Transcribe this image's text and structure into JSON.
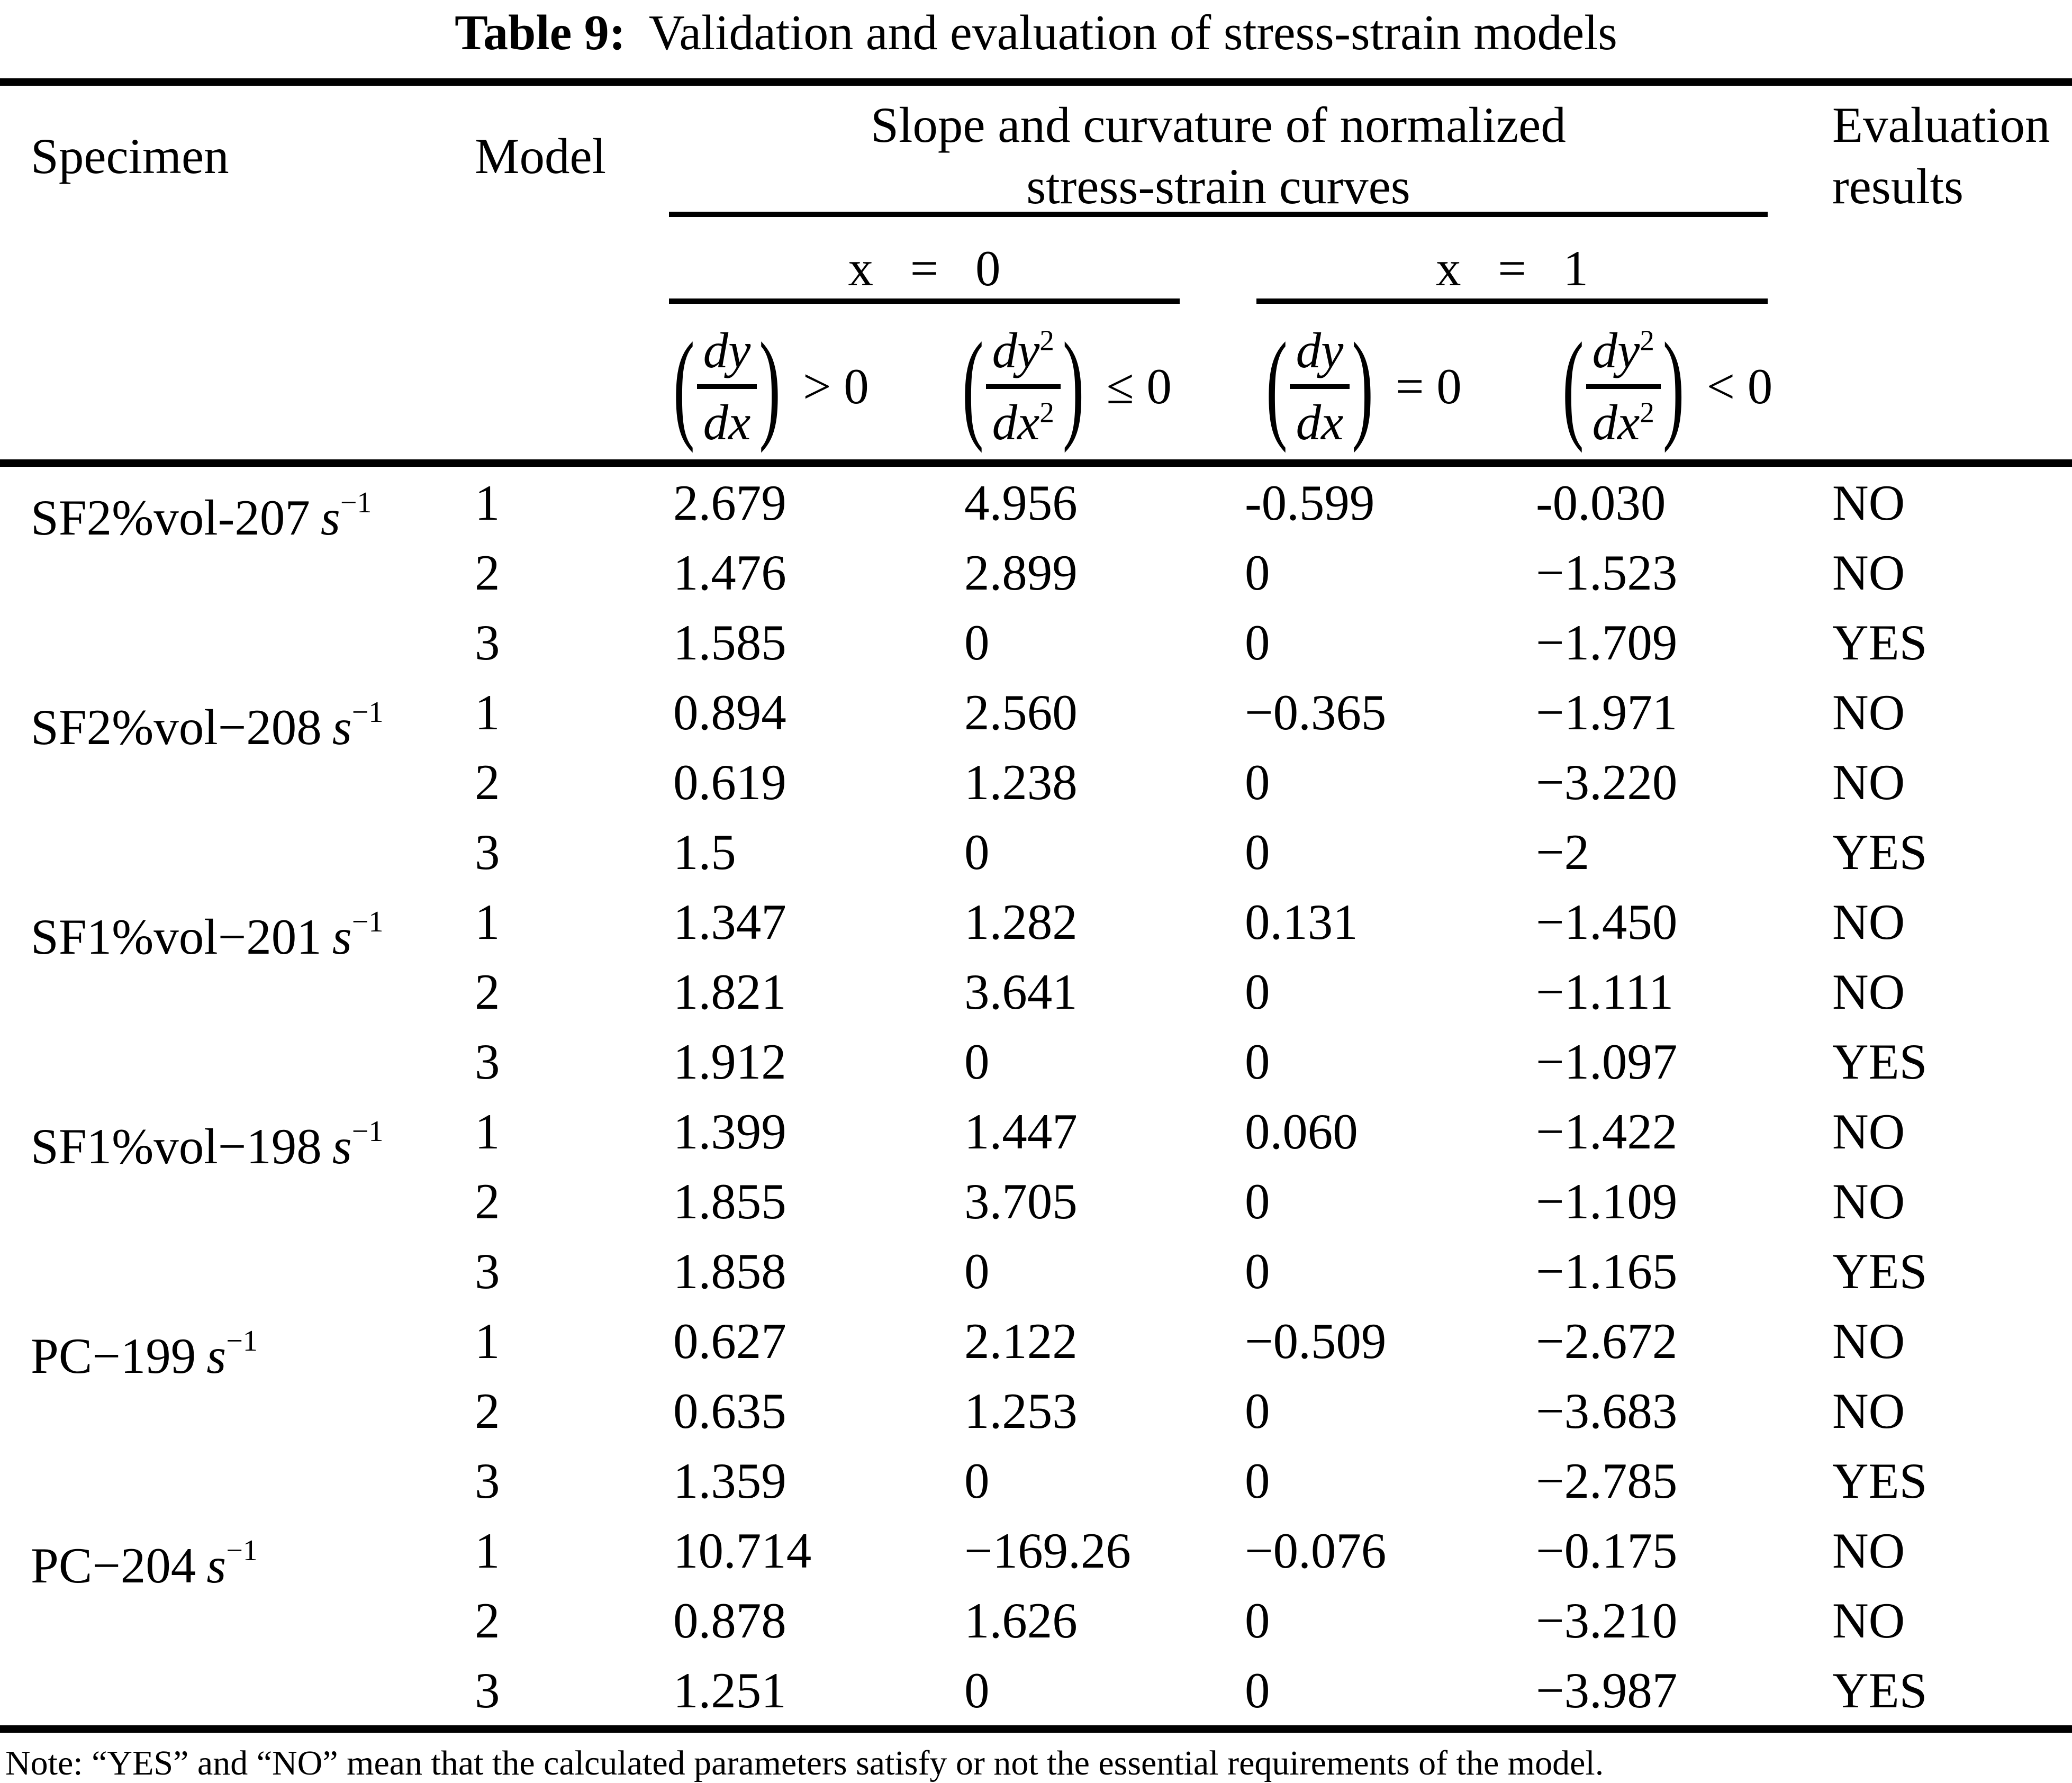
{
  "title": {
    "prefix": "Table 9:",
    "rest": " Validation and evaluation of stress-strain models"
  },
  "colors": {
    "text": "#000000",
    "background": "#ffffff"
  },
  "header": {
    "specimen": "Specimen",
    "model": "Model",
    "slope_group_line1": "Slope and curvature of normalized",
    "slope_group_line2": "stress-strain curves",
    "evaluation_line1": "Evaluation",
    "evaluation_line2": "results",
    "x0_label": "x = 0",
    "x1_label": "x = 1",
    "formulas": [
      {
        "num": "dy",
        "num_sup": "",
        "den": "dx",
        "den_sup": "",
        "cmp": "> 0"
      },
      {
        "num": "dy",
        "num_sup": "2",
        "den": "dx",
        "den_sup": "2",
        "cmp": "≤ 0"
      },
      {
        "num": "dy",
        "num_sup": "",
        "den": "dx",
        "den_sup": "",
        "cmp": "= 0"
      },
      {
        "num": "dy",
        "num_sup": "2",
        "den": "dx",
        "den_sup": "2",
        "cmp": "< 0"
      }
    ]
  },
  "rows": [
    {
      "specimen": "SF2%vol-207",
      "unit": "s",
      "unit_sup": "−1",
      "model": "1",
      "slope_x0": "2.679",
      "curv_x0": "4.956",
      "slope_x1": "-0.599",
      "curv_x1": "-0.030",
      "result": "NO"
    },
    {
      "specimen": "",
      "unit": "",
      "unit_sup": "",
      "model": "2",
      "slope_x0": "1.476",
      "curv_x0": "2.899",
      "slope_x1": "0",
      "curv_x1": "−1.523",
      "result": "NO"
    },
    {
      "specimen": "",
      "unit": "",
      "unit_sup": "",
      "model": "3",
      "slope_x0": "1.585",
      "curv_x0": "0",
      "slope_x1": "0",
      "curv_x1": "−1.709",
      "result": "YES"
    },
    {
      "specimen": "SF2%vol−208",
      "unit": "s",
      "unit_sup": "−1",
      "model": "1",
      "slope_x0": "0.894",
      "curv_x0": "2.560",
      "slope_x1": "−0.365",
      "curv_x1": "−1.971",
      "result": "NO"
    },
    {
      "specimen": "",
      "unit": "",
      "unit_sup": "",
      "model": "2",
      "slope_x0": "0.619",
      "curv_x0": "1.238",
      "slope_x1": "0",
      "curv_x1": "−3.220",
      "result": "NO"
    },
    {
      "specimen": "",
      "unit": "",
      "unit_sup": "",
      "model": "3",
      "slope_x0": "1.5",
      "curv_x0": "0",
      "slope_x1": "0",
      "curv_x1": "−2",
      "result": "YES"
    },
    {
      "specimen": "SF1%vol−201",
      "unit": "s",
      "unit_sup": "−1",
      "model": "1",
      "slope_x0": "1.347",
      "curv_x0": "1.282",
      "slope_x1": "0.131",
      "curv_x1": "−1.450",
      "result": "NO"
    },
    {
      "specimen": "",
      "unit": "",
      "unit_sup": "",
      "model": "2",
      "slope_x0": "1.821",
      "curv_x0": "3.641",
      "slope_x1": "0",
      "curv_x1": "−1.111",
      "result": "NO"
    },
    {
      "specimen": "",
      "unit": "",
      "unit_sup": "",
      "model": "3",
      "slope_x0": "1.912",
      "curv_x0": "0",
      "slope_x1": "0",
      "curv_x1": "−1.097",
      "result": "YES"
    },
    {
      "specimen": "SF1%vol−198",
      "unit": "s",
      "unit_sup": "−1",
      "model": "1",
      "slope_x0": "1.399",
      "curv_x0": "1.447",
      "slope_x1": "0.060",
      "curv_x1": "−1.422",
      "result": "NO"
    },
    {
      "specimen": "",
      "unit": "",
      "unit_sup": "",
      "model": "2",
      "slope_x0": "1.855",
      "curv_x0": "3.705",
      "slope_x1": "0",
      "curv_x1": "−1.109",
      "result": "NO"
    },
    {
      "specimen": "",
      "unit": "",
      "unit_sup": "",
      "model": "3",
      "slope_x0": "1.858",
      "curv_x0": "0",
      "slope_x1": "0",
      "curv_x1": "−1.165",
      "result": "YES"
    },
    {
      "specimen": "PC−199",
      "unit": "s",
      "unit_sup": "−1",
      "model": "1",
      "slope_x0": "0.627",
      "curv_x0": "2.122",
      "slope_x1": "−0.509",
      "curv_x1": "−2.672",
      "result": "NO"
    },
    {
      "specimen": "",
      "unit": "",
      "unit_sup": "",
      "model": "2",
      "slope_x0": "0.635",
      "curv_x0": "1.253",
      "slope_x1": "0",
      "curv_x1": "−3.683",
      "result": "NO"
    },
    {
      "specimen": "",
      "unit": "",
      "unit_sup": "",
      "model": "3",
      "slope_x0": "1.359",
      "curv_x0": "0",
      "slope_x1": "0",
      "curv_x1": "−2.785",
      "result": "YES"
    },
    {
      "specimen": "PC−204",
      "unit": "s",
      "unit_sup": "−1",
      "model": "1",
      "slope_x0": "10.714",
      "curv_x0": "−169.26",
      "slope_x1": "−0.076",
      "curv_x1": "−0.175",
      "result": "NO"
    },
    {
      "specimen": "",
      "unit": "",
      "unit_sup": "",
      "model": "2",
      "slope_x0": "0.878",
      "curv_x0": "1.626",
      "slope_x1": "0",
      "curv_x1": "−3.210",
      "result": "NO"
    },
    {
      "specimen": "",
      "unit": "",
      "unit_sup": "",
      "model": "3",
      "slope_x0": "1.251",
      "curv_x0": "0",
      "slope_x1": "0",
      "curv_x1": "−3.987",
      "result": "YES"
    }
  ],
  "note": "Note: “YES” and “NO” mean that the calculated parameters satisfy or not the essential requirements of the model."
}
